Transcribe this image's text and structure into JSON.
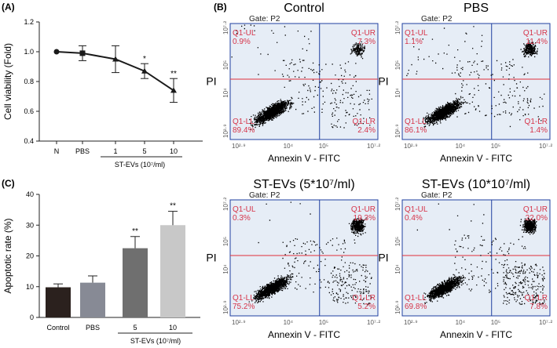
{
  "panels": {
    "a": "(A)",
    "b": "(B)",
    "c": "(C)"
  },
  "colors": {
    "axis": "#222222",
    "line": "#1a1a1a",
    "bar_control": "#2b211e",
    "bar_pbs": "#878a95",
    "bar_5": "#6f6f6f",
    "bar_10": "#c8c8c8",
    "flow_bg": "#e6edf6",
    "flow_frame": "#1f3fa0",
    "quad_line": "#e0303a",
    "quad_text": "#d6354a",
    "dots": "#000000",
    "gate_text": "#202020"
  },
  "chart_data": [
    {
      "id": "A",
      "type": "line",
      "ylabel": "Cell viability (Fold)",
      "ylim": [
        0.4,
        1.2
      ],
      "yticks": [
        0.4,
        0.6,
        0.8,
        1.0,
        1.2
      ],
      "ytick_labels": [
        "0.4",
        "0.6",
        "0.8",
        "1.0",
        "1.2"
      ],
      "categories": [
        "N",
        "PBS",
        "1",
        "5",
        "10"
      ],
      "values": [
        1.0,
        0.99,
        0.95,
        0.87,
        0.74
      ],
      "errors": [
        0.0,
        0.05,
        0.09,
        0.05,
        0.08
      ],
      "markers": [
        "circle",
        "square",
        "triangle",
        "triangle",
        "triangle"
      ],
      "significance": [
        "",
        "",
        "",
        "*",
        "**"
      ],
      "group_label": "ST-EVs (10⁷/ml)"
    },
    {
      "id": "C",
      "type": "bar",
      "ylabel": "Apoptotic rate (%)",
      "ylim": [
        0,
        40
      ],
      "yticks": [
        0,
        10,
        20,
        30,
        40
      ],
      "ytick_labels": [
        "0",
        "10",
        "20",
        "30",
        "40"
      ],
      "categories": [
        "Control",
        "PBS",
        "5",
        "10"
      ],
      "values": [
        9.8,
        11.3,
        22.5,
        30.0
      ],
      "errors": [
        1.1,
        2.2,
        3.8,
        4.5
      ],
      "significance": [
        "",
        "",
        "**",
        "**"
      ],
      "group_label": "ST-EVs (10⁷/ml)"
    },
    {
      "id": "B",
      "type": "scatter",
      "xlabel": "Annexin V - FITC",
      "ylabel": "PI",
      "gate": "Gate: P2",
      "axis_ticks": [
        "10²·⁹",
        "10⁴",
        "10⁵",
        "10⁷·²"
      ],
      "quadrant_names": [
        "Q1-UL",
        "Q1-UR",
        "Q1-LL",
        "Q1-LR"
      ],
      "plots": [
        {
          "title": "Control",
          "UL": "0.9%",
          "UR": "7.3%",
          "LL": "89.4%",
          "LR": "2.4%"
        },
        {
          "title": "PBS",
          "UL": "1.1%",
          "UR": "11.4%",
          "LL": "86.1%",
          "LR": "1.4%"
        },
        {
          "title": "ST-EVs (5*10⁷/ml)",
          "UL": "0.3%",
          "UR": "19.3%",
          "LL": "75.2%",
          "LR": "5.2%"
        },
        {
          "title": "ST-EVs (10*10⁷/ml)",
          "UL": "0.4%",
          "UR": "22.0%",
          "LL": "69.8%",
          "LR": "7.8%"
        }
      ]
    }
  ]
}
